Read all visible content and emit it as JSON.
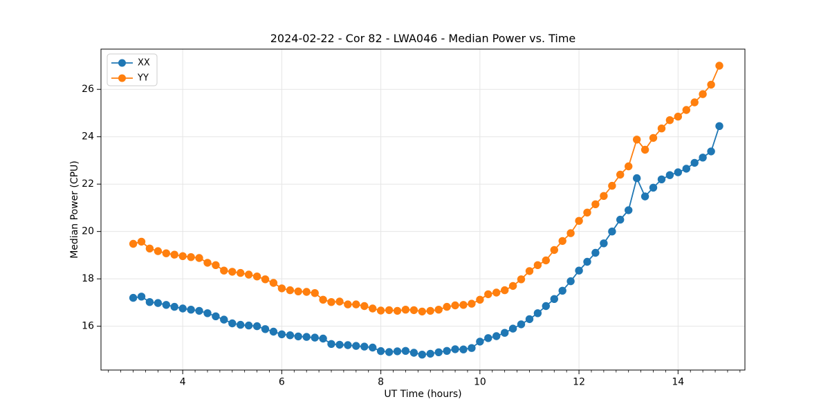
{
  "chart_data": {
    "type": "line",
    "title": "2024-02-22 - Cor 82 - LWA046 - Median Power vs. Time",
    "xlabel": "UT Time (hours)",
    "ylabel": "Median Power (CPU)",
    "xlim": [
      2.35,
      15.35
    ],
    "ylim": [
      14.15,
      27.7
    ],
    "xticks": [
      4,
      6,
      8,
      10,
      12,
      14
    ],
    "yticks": [
      16,
      18,
      20,
      22,
      24,
      26
    ],
    "x_minor_step": 0.25,
    "grid": true,
    "legend_position": "upper-left",
    "marker": "circle",
    "x": [
      3.0,
      3.167,
      3.333,
      3.5,
      3.667,
      3.833,
      4.0,
      4.167,
      4.333,
      4.5,
      4.667,
      4.833,
      5.0,
      5.167,
      5.333,
      5.5,
      5.667,
      5.833,
      6.0,
      6.167,
      6.333,
      6.5,
      6.667,
      6.833,
      7.0,
      7.167,
      7.333,
      7.5,
      7.667,
      7.833,
      8.0,
      8.167,
      8.333,
      8.5,
      8.667,
      8.833,
      9.0,
      9.167,
      9.333,
      9.5,
      9.667,
      9.833,
      10.0,
      10.167,
      10.333,
      10.5,
      10.667,
      10.833,
      11.0,
      11.167,
      11.333,
      11.5,
      11.667,
      11.833,
      12.0,
      12.167,
      12.333,
      12.5,
      12.667,
      12.833,
      13.0,
      13.167,
      13.333,
      13.5,
      13.667,
      13.833,
      14.0,
      14.167,
      14.333,
      14.5,
      14.667,
      14.833
    ],
    "series": [
      {
        "name": "XX",
        "color": "#1f77b4",
        "values": [
          17.2,
          17.25,
          17.02,
          16.98,
          16.9,
          16.82,
          16.75,
          16.7,
          16.65,
          16.55,
          16.42,
          16.28,
          16.12,
          16.06,
          16.03,
          16.0,
          15.88,
          15.77,
          15.66,
          15.62,
          15.57,
          15.55,
          15.52,
          15.48,
          15.25,
          15.22,
          15.2,
          15.17,
          15.14,
          15.1,
          14.95,
          14.91,
          14.94,
          14.96,
          14.88,
          14.8,
          14.84,
          14.9,
          14.96,
          15.03,
          15.02,
          15.08,
          15.35,
          15.5,
          15.58,
          15.72,
          15.9,
          16.08,
          16.3,
          16.55,
          16.85,
          17.15,
          17.5,
          17.9,
          18.35,
          18.72,
          19.1,
          19.5,
          20.0,
          20.5,
          20.9,
          22.25,
          21.48,
          21.85,
          22.2,
          22.38,
          22.5,
          22.65,
          22.9,
          23.12,
          23.38,
          24.45
        ]
      },
      {
        "name": "YY",
        "color": "#ff7f0e",
        "values": [
          19.48,
          19.57,
          19.28,
          19.17,
          19.08,
          19.02,
          18.96,
          18.92,
          18.88,
          18.68,
          18.58,
          18.35,
          18.3,
          18.25,
          18.18,
          18.1,
          17.98,
          17.83,
          17.6,
          17.52,
          17.47,
          17.45,
          17.4,
          17.12,
          17.02,
          17.04,
          16.92,
          16.92,
          16.85,
          16.75,
          16.66,
          16.68,
          16.65,
          16.7,
          16.68,
          16.62,
          16.65,
          16.7,
          16.82,
          16.88,
          16.9,
          16.95,
          17.12,
          17.35,
          17.42,
          17.52,
          17.7,
          17.98,
          18.33,
          18.58,
          18.78,
          19.22,
          19.6,
          19.93,
          20.45,
          20.8,
          21.15,
          21.5,
          21.93,
          22.4,
          22.75,
          23.88,
          23.45,
          23.95,
          24.35,
          24.7,
          24.85,
          25.13,
          25.45,
          25.8,
          26.2,
          27.0
        ]
      }
    ]
  },
  "colors": {
    "grid": "#e5e5e5",
    "spine": "#000000",
    "tick": "#000000",
    "text": "#000000",
    "legend_border": "#cccccc",
    "background": "#ffffff"
  }
}
